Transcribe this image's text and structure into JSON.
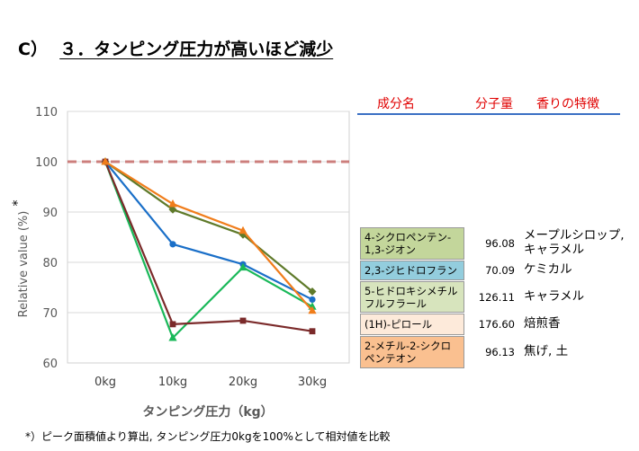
{
  "slide": {
    "title_prefix": "C）",
    "title": "３．タンピング圧力が高いほど減少",
    "footnote": "*）ピーク面積値より算出, タンピング圧力0kgを100%として相対値を比較"
  },
  "table": {
    "headers": {
      "component": "成分名",
      "mw": "分子量",
      "aroma": "香りの特徴"
    },
    "rows": [
      {
        "name": "4-シクロペンテン-\n1,3-ジオン",
        "mw": "96.08",
        "aroma": "メープルシロップ,\nキャラメル",
        "color": "#c3d69b"
      },
      {
        "name": "2,3-ジヒドロフラン",
        "mw": "70.09",
        "aroma": "ケミカル",
        "color": "#93cddd"
      },
      {
        "name": "5-ヒドロキシメチル\nフルフラール",
        "mw": "126.11",
        "aroma": "キャラメル",
        "color": "#d7e4bd"
      },
      {
        "name": "(1H)-ピロール",
        "mw": "176.60",
        "aroma": "焙煎香",
        "color": "#fdeada"
      },
      {
        "name": "2-メチル-2-シクロ\nペンテオン",
        "mw": "96.13",
        "aroma": "焦げ, 土",
        "color": "#fac090"
      }
    ]
  },
  "chart_data": {
    "type": "line",
    "categories": [
      "0kg",
      "10kg",
      "20kg",
      "30kg"
    ],
    "xlabel": "タンピング圧力（kg）",
    "ylabel": "Relative value (%)",
    "ylabel_mark": "*",
    "ylim": [
      60,
      110
    ],
    "yticks": [
      60,
      70,
      80,
      90,
      100,
      110
    ],
    "grid": true,
    "reference_line": 100,
    "series": [
      {
        "values": [
          100,
          90.5,
          85.5,
          74.2
        ],
        "color": "#5f7a2a",
        "marker": "diamond"
      },
      {
        "values": [
          100,
          83.6,
          79.6,
          72.6
        ],
        "color": "#1a6fc8",
        "marker": "circle"
      },
      {
        "values": [
          100,
          65.0,
          79.0,
          71.2
        ],
        "color": "#19b859",
        "marker": "triangle"
      },
      {
        "values": [
          100,
          67.7,
          68.4,
          66.3
        ],
        "color": "#7b2a2a",
        "marker": "square"
      },
      {
        "values": [
          100,
          91.6,
          86.3,
          70.4
        ],
        "color": "#f07d1b",
        "marker": "triangle"
      }
    ]
  }
}
